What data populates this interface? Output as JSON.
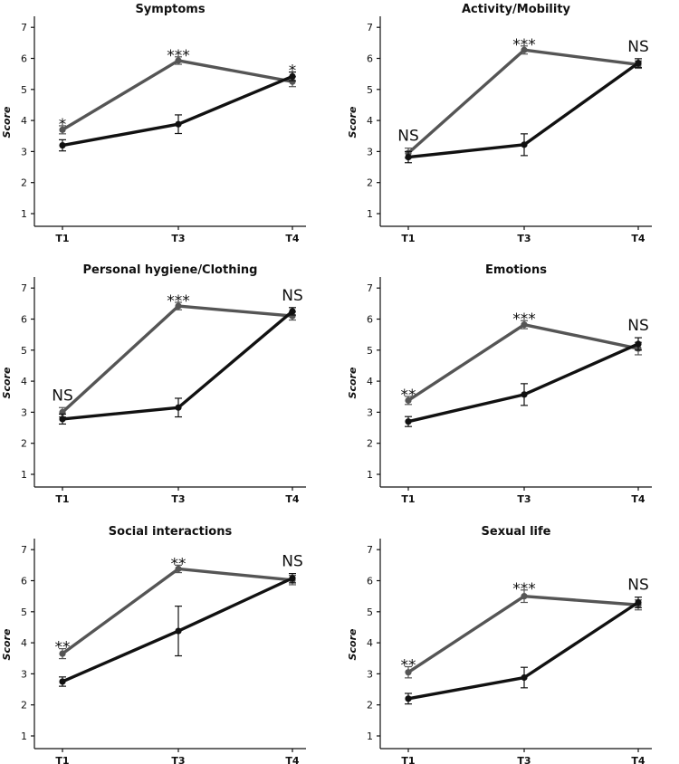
{
  "chart_data": [
    {
      "type": "line",
      "title": "Symptoms",
      "ylabel": "Score",
      "xlabel": "",
      "categories": [
        "T1",
        "T3",
        "T4"
      ],
      "ylim": [
        0.7,
        7.2
      ],
      "yticks": [
        1,
        2,
        3,
        4,
        5,
        6,
        7
      ],
      "grid": false,
      "colors": [
        "#555555",
        "#111111"
      ],
      "series": [
        {
          "values": [
            3.7,
            5.93,
            5.25
          ],
          "errors": [
            0.13,
            0.12,
            0.16
          ]
        },
        {
          "values": [
            3.2,
            3.88,
            5.42
          ],
          "errors": [
            0.18,
            0.3,
            0.14
          ]
        }
      ],
      "annotations": [
        "*",
        "***",
        "*"
      ]
    },
    {
      "type": "line",
      "title": "Activity/Mobility",
      "ylabel": "Score",
      "xlabel": "",
      "categories": [
        "T1",
        "T3",
        "T4"
      ],
      "ylim": [
        0.7,
        7.2
      ],
      "yticks": [
        1,
        2,
        3,
        4,
        5,
        6,
        7
      ],
      "grid": false,
      "colors": [
        "#555555",
        "#111111"
      ],
      "series": [
        {
          "values": [
            2.95,
            6.27,
            5.8
          ],
          "errors": [
            0.16,
            0.13,
            0.12
          ]
        },
        {
          "values": [
            2.82,
            3.22,
            5.85
          ],
          "errors": [
            0.18,
            0.35,
            0.14
          ]
        }
      ],
      "annotations": [
        "NS",
        "***",
        "NS"
      ]
    },
    {
      "type": "line",
      "title": "Personal hygiene/Clothing",
      "ylabel": "Score",
      "xlabel": "",
      "categories": [
        "T1",
        "T3",
        "T4"
      ],
      "ylim": [
        0.7,
        7.2
      ],
      "yticks": [
        1,
        2,
        3,
        4,
        5,
        6,
        7
      ],
      "grid": false,
      "colors": [
        "#555555",
        "#111111"
      ],
      "series": [
        {
          "values": [
            3.0,
            6.42,
            6.1
          ],
          "errors": [
            0.15,
            0.12,
            0.13
          ]
        },
        {
          "values": [
            2.78,
            3.15,
            6.25
          ],
          "errors": [
            0.16,
            0.3,
            0.12
          ]
        }
      ],
      "annotations": [
        "NS",
        "***",
        "NS"
      ]
    },
    {
      "type": "line",
      "title": "Emotions",
      "ylabel": "Score",
      "xlabel": "",
      "categories": [
        "T1",
        "T3",
        "T4"
      ],
      "ylim": [
        0.7,
        7.2
      ],
      "yticks": [
        1,
        2,
        3,
        4,
        5,
        6,
        7
      ],
      "grid": false,
      "colors": [
        "#555555",
        "#111111"
      ],
      "series": [
        {
          "values": [
            3.38,
            5.82,
            5.05
          ],
          "errors": [
            0.13,
            0.13,
            0.2
          ]
        },
        {
          "values": [
            2.7,
            3.57,
            5.2
          ],
          "errors": [
            0.16,
            0.35,
            0.2
          ]
        }
      ],
      "annotations": [
        "**",
        "***",
        "NS"
      ]
    },
    {
      "type": "line",
      "title": "Social interactions",
      "ylabel": "Score",
      "xlabel": "",
      "categories": [
        "T1",
        "T3",
        "T4"
      ],
      "ylim": [
        0.7,
        7.2
      ],
      "yticks": [
        1,
        2,
        3,
        4,
        5,
        6,
        7
      ],
      "grid": false,
      "colors": [
        "#555555",
        "#111111"
      ],
      "series": [
        {
          "values": [
            3.65,
            6.38,
            6.02
          ],
          "errors": [
            0.16,
            0.12,
            0.15
          ]
        },
        {
          "values": [
            2.75,
            4.38,
            6.08
          ],
          "errors": [
            0.15,
            0.8,
            0.15
          ]
        }
      ],
      "annotations": [
        "**",
        "**",
        "NS"
      ]
    },
    {
      "type": "line",
      "title": "Sexual life",
      "ylabel": "Score",
      "xlabel": "",
      "categories": [
        "T1",
        "T3",
        "T4"
      ],
      "ylim": [
        0.7,
        7.2
      ],
      "yticks": [
        1,
        2,
        3,
        4,
        5,
        6,
        7
      ],
      "grid": false,
      "colors": [
        "#555555",
        "#111111"
      ],
      "series": [
        {
          "values": [
            3.05,
            5.5,
            5.22
          ],
          "errors": [
            0.18,
            0.2,
            0.16
          ]
        },
        {
          "values": [
            2.2,
            2.88,
            5.3
          ],
          "errors": [
            0.17,
            0.33,
            0.17
          ]
        }
      ],
      "annotations": [
        "**",
        "***",
        "NS"
      ]
    }
  ]
}
